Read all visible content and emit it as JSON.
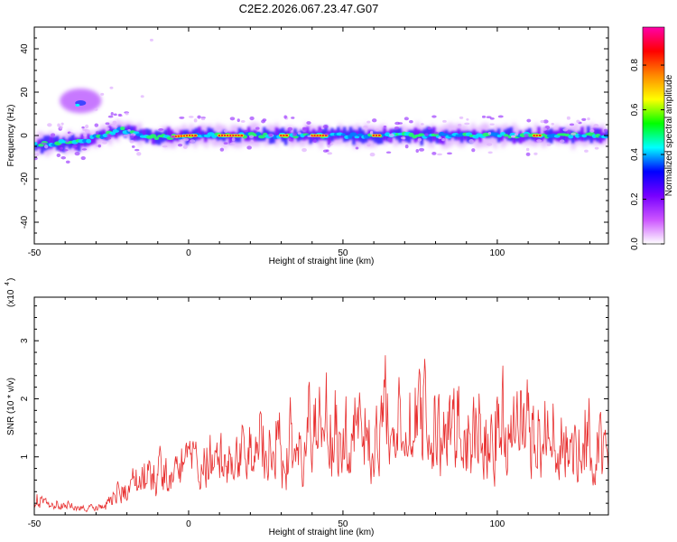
{
  "title": "C2E2.2026.067.23.47.G07",
  "chart_data": [
    {
      "type": "heatmap",
      "name": "spectrogram",
      "xlabel": "Height of straight line (km)",
      "ylabel": "Frequency (Hz)",
      "xlim": [
        -50,
        136
      ],
      "ylim": [
        -50,
        50
      ],
      "x_ticks": [
        -50,
        0,
        50,
        100
      ],
      "y_ticks": [
        -40,
        -20,
        0,
        20,
        40
      ],
      "colorbar": {
        "label": "Normalized spectral amplitude",
        "range": [
          0,
          0.97
        ],
        "ticks": [
          0.0,
          0.2,
          0.4,
          0.6,
          0.8
        ],
        "tick_labels": [
          "0.0",
          "0.2",
          "0.4",
          "0.6",
          "0.8"
        ],
        "colors": [
          "#ffffff",
          "#cc55ff",
          "#7700ff",
          "#0000ff",
          "#00ffff",
          "#00ff00",
          "#ffff00",
          "#ff8800",
          "#ff0000",
          "#ff00aa"
        ]
      },
      "main_band": {
        "x_range": [
          -50,
          136
        ],
        "center_hz": [
          [
            -50,
            -4
          ],
          [
            -35,
            -3
          ],
          [
            -28,
            0
          ],
          [
            -22,
            3
          ],
          [
            -15,
            0
          ],
          [
            -10,
            -1
          ],
          [
            0,
            0
          ],
          [
            30,
            0
          ],
          [
            60,
            0
          ],
          [
            100,
            0
          ],
          [
            136,
            0
          ]
        ],
        "peak_segments": [
          [
            -5,
            3
          ],
          [
            10,
            18
          ],
          [
            30,
            32
          ],
          [
            40,
            45
          ],
          [
            60,
            62
          ],
          [
            112,
            114
          ]
        ]
      },
      "secondary_blob": {
        "x_range": [
          -40,
          -30
        ],
        "freq_range": [
          12,
          20
        ]
      }
    },
    {
      "type": "line",
      "name": "snr",
      "xlabel": "Height of straight line (km)",
      "ylabel": "SNR (10 * v/v)",
      "y_multiplier": "(x10^4)",
      "y_multiplier_base": "(x10",
      "y_multiplier_exp": "4",
      "xlim": [
        -50,
        136
      ],
      "ylim": [
        0,
        37500
      ],
      "x_ticks": [
        -50,
        0,
        50,
        100
      ],
      "y_ticks": [
        10000,
        20000,
        30000
      ],
      "y_tick_labels": [
        "1",
        "2",
        "3"
      ],
      "color": "#e83030",
      "envelope": {
        "x": [
          -50,
          -40,
          -30,
          -22,
          -15,
          -10,
          -5,
          0,
          5,
          10,
          20,
          30,
          40,
          50,
          60,
          70,
          80,
          90,
          100,
          110,
          120,
          136
        ],
        "baseline": [
          1500,
          700,
          500,
          2000,
          5000,
          7000,
          9000,
          12000,
          4000,
          6000,
          6000,
          7000,
          7000,
          8000,
          7000,
          7000,
          6000,
          6000,
          6000,
          6000,
          6000,
          5000
        ],
        "amplitude": [
          4500,
          2500,
          1500,
          7000,
          11000,
          11000,
          9000,
          7000,
          17000,
          15000,
          18000,
          22000,
          24000,
          24000,
          26000,
          28000,
          27000,
          26000,
          26000,
          25000,
          24000,
          20000
        ]
      }
    }
  ]
}
